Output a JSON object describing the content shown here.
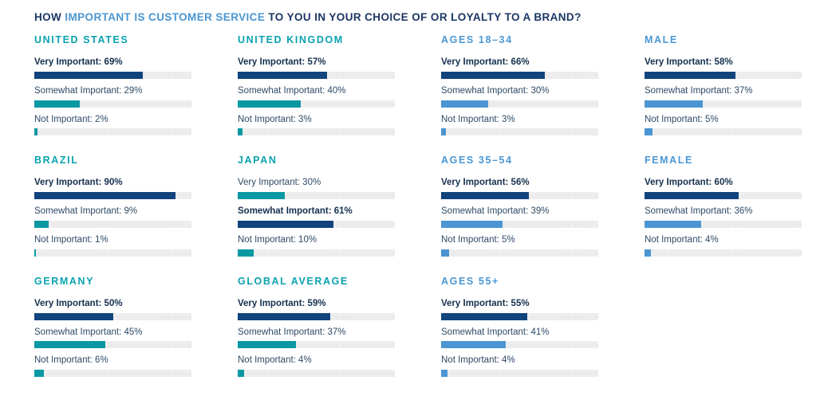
{
  "title": {
    "prefix": "HOW ",
    "highlight": "IMPORTANT IS CUSTOMER SERVICE",
    "suffix": " TO YOU IN YOUR CHOICE OF OR LOYALTY TO A BRAND?"
  },
  "colors": {
    "navy_bar": "#11437c",
    "teal_bar": "#0a98a3",
    "light_blue_bar": "#4b96d2",
    "track": "#ededed",
    "header_teal": "#0aa2af",
    "header_blue": "#4a97d4",
    "title_navy": "#1c3664",
    "title_highlight_blue": "#4a96d2"
  },
  "chart_data": {
    "type": "bar",
    "unit": "%",
    "categories": [
      "Very Important",
      "Somewhat Important",
      "Not Important"
    ],
    "xlim": [
      0,
      100
    ],
    "note_emphasis_rule": "highest value per chart is bold with navy bar",
    "columns": [
      {
        "accent": "teal",
        "charts": [
          {
            "name": "UNITED STATES",
            "values": [
              69,
              29,
              2
            ]
          },
          {
            "name": "BRAZIL",
            "values": [
              90,
              9,
              1
            ]
          },
          {
            "name": "GERMANY",
            "values": [
              50,
              45,
              6
            ]
          }
        ]
      },
      {
        "accent": "teal",
        "charts": [
          {
            "name": "UNITED KINGDOM",
            "values": [
              57,
              40,
              3
            ]
          },
          {
            "name": "JAPAN",
            "values": [
              30,
              61,
              10
            ]
          },
          {
            "name": "GLOBAL AVERAGE",
            "values": [
              59,
              37,
              4
            ]
          }
        ]
      },
      {
        "accent": "blue",
        "charts": [
          {
            "name": "AGES 18–34",
            "values": [
              66,
              30,
              3
            ]
          },
          {
            "name": "AGES 35–54",
            "values": [
              56,
              39,
              5
            ]
          },
          {
            "name": "AGES 55+",
            "values": [
              55,
              41,
              4
            ]
          }
        ]
      },
      {
        "accent": "blue",
        "charts": [
          {
            "name": "MALE",
            "values": [
              58,
              37,
              5
            ]
          },
          {
            "name": "FEMALE",
            "values": [
              60,
              36,
              4
            ]
          }
        ]
      }
    ]
  }
}
